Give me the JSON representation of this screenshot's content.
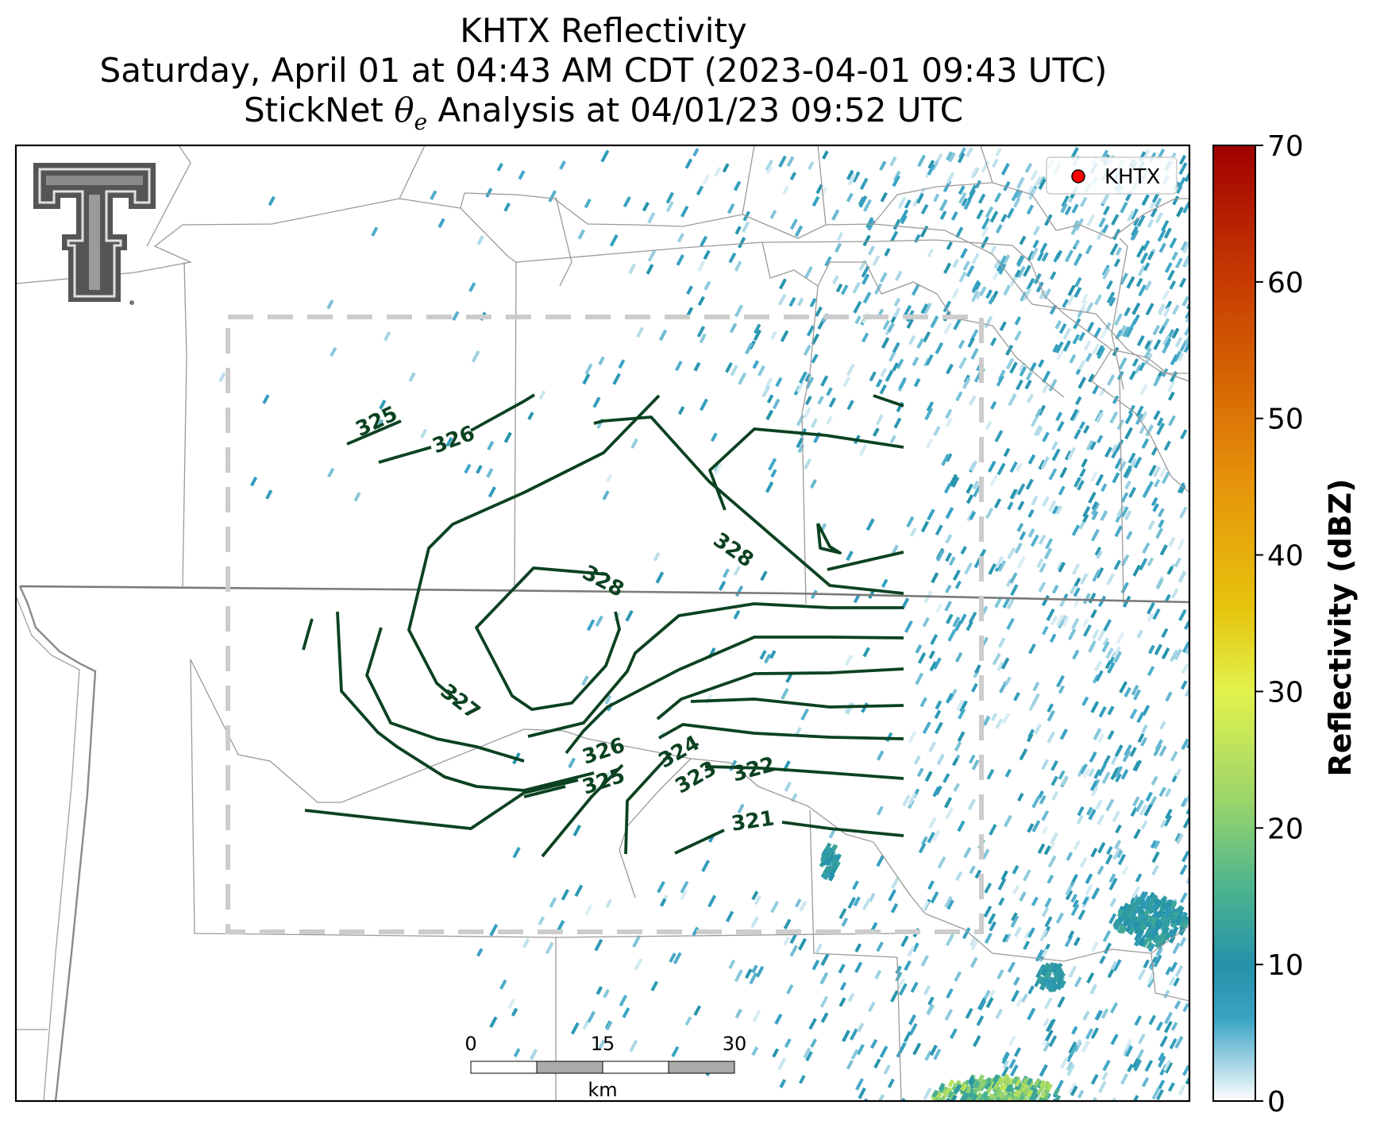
{
  "title": {
    "line1": "KHTX Reflectivity",
    "line2": "Saturday, April 01 at 04:43 AM CDT (2023-04-01 09:43 UTC)",
    "line3_prefix": "StickNet ",
    "line3_symbol": "θ",
    "line3_subscript": "e",
    "line3_suffix": " Analysis at 04/01/23 09:52 UTC"
  },
  "legend": {
    "label": "KHTX",
    "marker_color": "#ff0000"
  },
  "colorbar": {
    "label": "Reflectivity (dBZ)",
    "ticks": [
      "0",
      "10",
      "20",
      "30",
      "40",
      "50",
      "60",
      "70"
    ],
    "range": [
      0,
      70
    ],
    "stops": [
      {
        "v": 0,
        "c": "#ffffff"
      },
      {
        "v": 6,
        "c": "#3aa3c4"
      },
      {
        "v": 10,
        "c": "#2592a9"
      },
      {
        "v": 16,
        "c": "#4fb68c"
      },
      {
        "v": 22,
        "c": "#9bd56a"
      },
      {
        "v": 30,
        "c": "#e2f24d"
      },
      {
        "v": 36,
        "c": "#e6c40d"
      },
      {
        "v": 45,
        "c": "#e6950a"
      },
      {
        "v": 52,
        "c": "#d86a04"
      },
      {
        "v": 60,
        "c": "#c83c03"
      },
      {
        "v": 70,
        "c": "#a00000"
      }
    ]
  },
  "scalebar": {
    "ticks": [
      "0",
      "15",
      "30"
    ],
    "unit": "km"
  },
  "contours": {
    "color": "#0b4221",
    "labels": [
      "325",
      "326",
      "328",
      "328",
      "327",
      "326",
      "325",
      "324",
      "323",
      "322",
      "321"
    ]
  },
  "logo": {
    "name": "Texas Tech Double T"
  }
}
